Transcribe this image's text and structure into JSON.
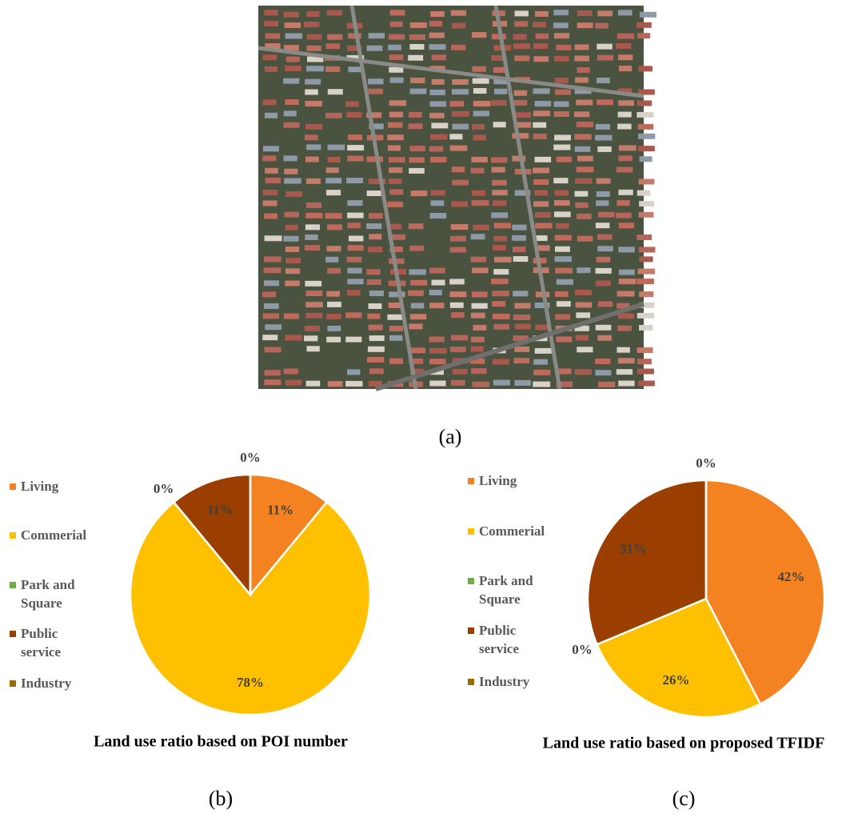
{
  "panel_labels": [
    "(a)",
    "(b)",
    "(c)"
  ],
  "chart_data": [
    {
      "type": "pie",
      "title": "Land use ratio based on POI number",
      "categories": [
        "Living",
        "Commerial",
        "Park and Square",
        "Public service",
        "Industry"
      ],
      "values": [
        11,
        78,
        0,
        11,
        0
      ],
      "value_labels": [
        "11%",
        "78%",
        "0%",
        "11%",
        "0%"
      ],
      "colors": [
        "#f58220",
        "#ffc000",
        "#70ad47",
        "#9a3f00",
        "#9c6a00"
      ]
    },
    {
      "type": "pie",
      "title": "Land use ratio based on proposed TFIDF",
      "categories": [
        "Living",
        "Commerial",
        "Park and Square",
        "Public service",
        "Industry"
      ],
      "values": [
        42,
        26,
        0,
        31,
        0
      ],
      "value_labels": [
        "42%",
        "26%",
        "0%",
        "31%",
        "0%"
      ],
      "colors": [
        "#f58220",
        "#ffc000",
        "#70ad47",
        "#9a3f00",
        "#9c6a00"
      ]
    }
  ]
}
